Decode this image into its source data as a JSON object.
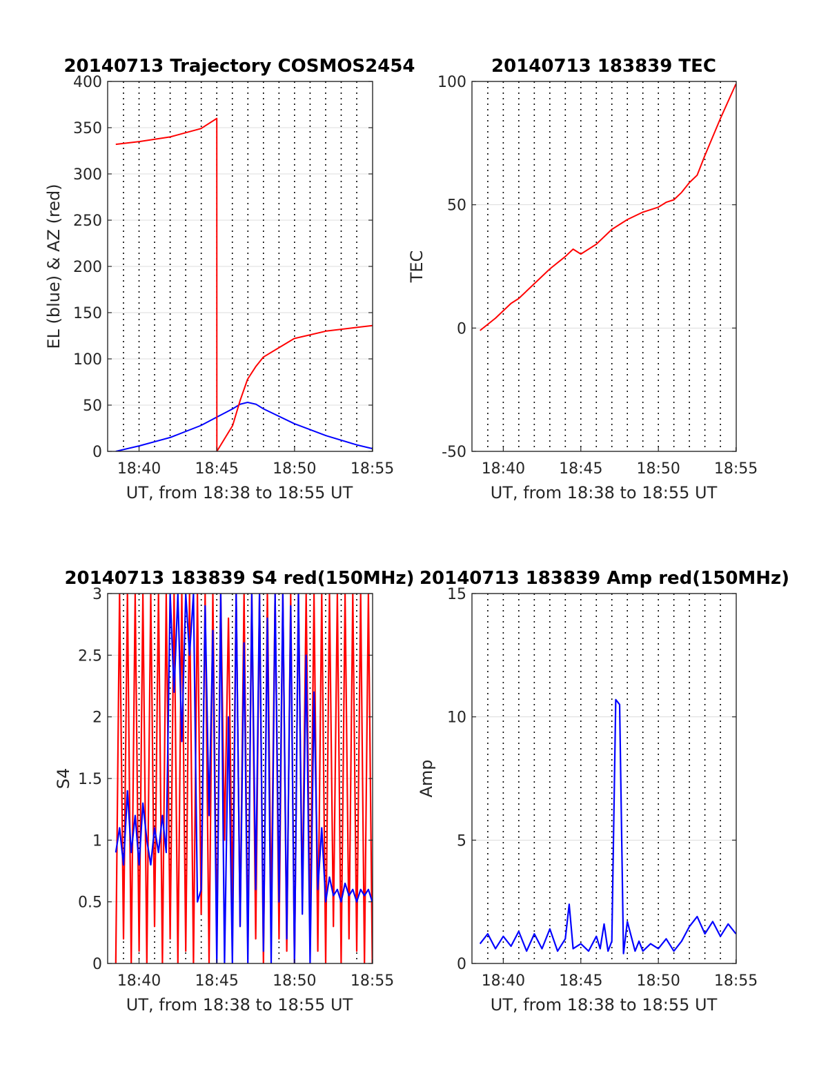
{
  "chart_data": [
    {
      "type": "line",
      "title": "20140713 Trajectory COSMOS2454",
      "xlabel": "UT, from 18:38 to 18:55 UT",
      "ylabel": "EL (blue) & AZ (red)",
      "xlim": [
        18.633,
        18.917
      ],
      "ylim": [
        0,
        400
      ],
      "xticks": [
        "18:40",
        "18:45",
        "18:50",
        "18:55"
      ],
      "yticks": [
        "0",
        "50",
        "100",
        "150",
        "200",
        "250",
        "300",
        "350",
        "400"
      ],
      "grid": true,
      "series": [
        {
          "color": "#0000ff",
          "x": [
            18.6417,
            18.667,
            18.7,
            18.733,
            18.75,
            18.767,
            18.775,
            18.783,
            18.792,
            18.8,
            18.833,
            18.867,
            18.9,
            18.9167
          ],
          "values": [
            0,
            6,
            15,
            28,
            37,
            46,
            51,
            53,
            51,
            46,
            30,
            17,
            7,
            3
          ]
        },
        {
          "color": "#ff0000",
          "x": [
            18.6417,
            18.667,
            18.7,
            18.733,
            18.75,
            18.7501,
            18.767,
            18.775,
            18.783,
            18.792,
            18.8,
            18.833,
            18.867,
            18.9,
            18.9167
          ],
          "values": [
            332,
            335,
            340,
            349,
            360,
            0,
            28,
            55,
            78,
            92,
            102,
            122,
            130,
            134,
            136
          ]
        }
      ]
    },
    {
      "type": "line",
      "title": "20140713 183839 TEC",
      "xlabel": "UT, from 18:38 to 18:55 UT",
      "ylabel": "TEC",
      "xlim": [
        18.633,
        18.917
      ],
      "ylim": [
        -50,
        100
      ],
      "xticks": [
        "18:40",
        "18:45",
        "18:50",
        "18:55"
      ],
      "yticks": [
        "-50",
        "0",
        "50",
        "100"
      ],
      "grid": true,
      "series": [
        {
          "color": "#ff0000",
          "x": [
            18.6417,
            18.6583,
            18.675,
            18.6833,
            18.7,
            18.7167,
            18.7333,
            18.7417,
            18.75,
            18.7667,
            18.7833,
            18.8,
            18.8167,
            18.8333,
            18.8417,
            18.85,
            18.8583,
            18.8667,
            18.875,
            18.8833,
            18.9,
            18.9167
          ],
          "values": [
            -1,
            4,
            10,
            12,
            18,
            24,
            29,
            32,
            30,
            34,
            40,
            44,
            47,
            49,
            51,
            52,
            55,
            59,
            62,
            70,
            85,
            99
          ]
        }
      ]
    },
    {
      "type": "line",
      "title": "20140713 183839 S4 red(150MHz)",
      "xlabel": "UT, from 18:38 to 18:55 UT",
      "ylabel": "S4",
      "xlim": [
        18.633,
        18.917
      ],
      "ylim": [
        0,
        3
      ],
      "xticks": [
        "18:40",
        "18:45",
        "18:50",
        "18:55"
      ],
      "yticks": [
        "0",
        "0.5",
        "1",
        "1.5",
        "2",
        "2.5",
        "3"
      ],
      "grid": true,
      "series": [
        {
          "color": "#ff0000",
          "x": [
            18.6417,
            18.6458,
            18.65,
            18.6542,
            18.6583,
            18.6625,
            18.6667,
            18.6708,
            18.675,
            18.6792,
            18.6833,
            18.6875,
            18.6917,
            18.6958,
            18.7,
            18.7042,
            18.7083,
            18.7125,
            18.7167,
            18.7208,
            18.725,
            18.7292,
            18.7333,
            18.7375,
            18.7417,
            18.7458,
            18.75,
            18.7542,
            18.7583,
            18.7625,
            18.7667,
            18.7708,
            18.775,
            18.7792,
            18.7833,
            18.7875,
            18.7917,
            18.7958,
            18.8,
            18.8042,
            18.8083,
            18.8125,
            18.8167,
            18.8208,
            18.825,
            18.8292,
            18.8333,
            18.8375,
            18.8417,
            18.8458,
            18.85,
            18.8542,
            18.8583,
            18.8625,
            18.8667,
            18.8708,
            18.875,
            18.8792,
            18.8833,
            18.8875,
            18.8917,
            18.8958,
            18.9,
            18.9042,
            18.9083,
            18.9125,
            18.9167
          ],
          "values": [
            0,
            3,
            0.2,
            3,
            0,
            3,
            0.1,
            3,
            0,
            3,
            0.3,
            3,
            0,
            3,
            0.2,
            3,
            0,
            3,
            0.1,
            3,
            0,
            3,
            0.4,
            3,
            0,
            3,
            0.2,
            3,
            1.0,
            2.8,
            0.5,
            3,
            0.3,
            3,
            0.1,
            3,
            0.2,
            3,
            0,
            3,
            0.4,
            3,
            0.2,
            3,
            0.1,
            3,
            0,
            3,
            0.5,
            3,
            0.2,
            3,
            0.1,
            3,
            0,
            3,
            0.3,
            3,
            0,
            3,
            0.2,
            3,
            0.1,
            3,
            0,
            3,
            0
          ]
        },
        {
          "color": "#0000ff",
          "x": [
            18.6417,
            18.6458,
            18.65,
            18.6542,
            18.6583,
            18.6625,
            18.6667,
            18.6708,
            18.675,
            18.6792,
            18.6833,
            18.6875,
            18.6917,
            18.6958,
            18.7,
            18.7042,
            18.7083,
            18.7125,
            18.7167,
            18.7208,
            18.725,
            18.7292,
            18.7333,
            18.7375,
            18.7417,
            18.7458,
            18.75,
            18.7542,
            18.7583,
            18.7625,
            18.7667,
            18.7708,
            18.775,
            18.7792,
            18.7833,
            18.7875,
            18.7917,
            18.7958,
            18.8,
            18.8042,
            18.8083,
            18.8125,
            18.8167,
            18.8208,
            18.825,
            18.8292,
            18.8333,
            18.8375,
            18.8417,
            18.8458,
            18.85,
            18.8542,
            18.8583,
            18.8625,
            18.8667,
            18.8708,
            18.875,
            18.8792,
            18.8833,
            18.8875,
            18.8917,
            18.8958,
            18.9,
            18.9042,
            18.9083,
            18.9125,
            18.9167
          ],
          "values": [
            0.9,
            1.1,
            0.8,
            1.4,
            0.9,
            1.2,
            0.8,
            1.3,
            1.0,
            0.8,
            1.1,
            0.9,
            1.2,
            0.9,
            3,
            2.2,
            3,
            1.8,
            3,
            2.5,
            3,
            0.5,
            0.6,
            2.9,
            1.2,
            2.7,
            0,
            3,
            0,
            2.0,
            0,
            3,
            0.3,
            2.6,
            0,
            3,
            0.6,
            3,
            0.1,
            2.8,
            0,
            3,
            0.5,
            3,
            0.2,
            2.9,
            0,
            3,
            0.4,
            2.5,
            0,
            2.2,
            0.6,
            1.1,
            0.5,
            0.7,
            0.55,
            0.6,
            0.5,
            0.65,
            0.55,
            0.6,
            0.5,
            0.6,
            0.55,
            0.6,
            0.5
          ]
        }
      ]
    },
    {
      "type": "line",
      "title": "20140713 183839 Amp red(150MHz)",
      "xlabel": "UT, from 18:38 to 18:55 UT",
      "ylabel": "Amp",
      "xlim": [
        18.633,
        18.917
      ],
      "ylim": [
        0,
        15
      ],
      "xticks": [
        "18:40",
        "18:45",
        "18:50",
        "18:55"
      ],
      "yticks": [
        "0",
        "5",
        "10",
        "15"
      ],
      "grid": true,
      "series": [
        {
          "color": "#0000ff",
          "x": [
            18.6417,
            18.65,
            18.6583,
            18.6667,
            18.675,
            18.6833,
            18.6917,
            18.7,
            18.7083,
            18.7167,
            18.725,
            18.7333,
            18.7375,
            18.7417,
            18.75,
            18.7583,
            18.7667,
            18.7708,
            18.775,
            18.7792,
            18.7833,
            18.7875,
            18.7917,
            18.7958,
            18.8,
            18.8083,
            18.8125,
            18.8167,
            18.825,
            18.8333,
            18.8417,
            18.85,
            18.8583,
            18.8667,
            18.875,
            18.8833,
            18.8917,
            18.9,
            18.9083,
            18.9167
          ],
          "values": [
            0.8,
            1.2,
            0.6,
            1.1,
            0.7,
            1.3,
            0.5,
            1.2,
            0.6,
            1.4,
            0.5,
            1.0,
            2.4,
            0.6,
            0.8,
            0.5,
            1.1,
            0.6,
            1.6,
            0.5,
            0.9,
            10.7,
            10.5,
            0.4,
            1.7,
            0.5,
            0.9,
            0.5,
            0.8,
            0.6,
            1.0,
            0.5,
            0.9,
            1.5,
            1.9,
            1.2,
            1.7,
            1.1,
            1.6,
            1.2
          ]
        }
      ]
    }
  ]
}
